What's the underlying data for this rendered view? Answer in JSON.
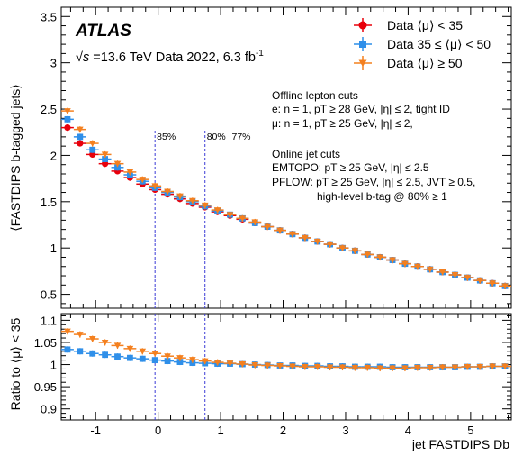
{
  "atlas": {
    "label": "ATLAS",
    "energy_pre": "√s",
    "energy_post": " =13.6 TeV Data 2022, 6.3 fb",
    "lumi_sup": "-1"
  },
  "legend": [
    {
      "label": "Data ⟨μ⟩ < 35",
      "color": "#e8000b",
      "marker": "circle"
    },
    {
      "label": "Data 35 ≤ ⟨μ⟩ < 50",
      "color": "#2f8fe9",
      "marker": "square"
    },
    {
      "label": "Data ⟨μ⟩ ≥ 50",
      "color": "#f4801f",
      "marker": "triangle"
    }
  ],
  "annotations": {
    "offline": {
      "title": "Offline lepton cuts",
      "e_cuts": "e: n = 1, pT ≥ 28 GeV, |η| ≤ 2, tight ID",
      "mu_cuts": "μ: n = 1, pT ≥ 25 GeV, |η| ≤ 2,"
    },
    "online": {
      "title": "Online jet cuts",
      "emtopo": "EMTOPO: pT ≥ 25 GeV, |η| ≤ 2.5",
      "pflow": "PFLOW: pT ≥ 25 GeV, |η| ≤ 2.5, JVT ≥ 0.5,",
      "btag": "high-level b-tag @ 80% ≥ 1"
    },
    "wp_lines": [
      {
        "x": -0.05,
        "label": "85%"
      },
      {
        "x": 0.75,
        "label": "80%"
      },
      {
        "x": 1.15,
        "label": "77%"
      }
    ]
  },
  "axes": {
    "xlabel": "jet FASTDIPS Db",
    "ylabel_top": "⟨FASTDIPS b-tagged jets⟩",
    "ylabel_ratio": "Ratio to ⟨μ⟩ < 35"
  },
  "chart_data": {
    "type": "scatter",
    "x": [
      -1.45,
      -1.25,
      -1.05,
      -0.85,
      -0.65,
      -0.45,
      -0.25,
      -0.05,
      0.15,
      0.35,
      0.55,
      0.75,
      0.95,
      1.15,
      1.35,
      1.55,
      1.75,
      1.95,
      2.15,
      2.35,
      2.55,
      2.75,
      2.95,
      3.15,
      3.35,
      3.55,
      3.75,
      3.95,
      4.15,
      4.35,
      4.55,
      4.75,
      4.95,
      5.15,
      5.35,
      5.55
    ],
    "series": [
      {
        "name": "Data ⟨μ⟩ < 35",
        "values": [
          2.3,
          2.13,
          2.01,
          1.91,
          1.83,
          1.76,
          1.69,
          1.63,
          1.58,
          1.53,
          1.48,
          1.44,
          1.39,
          1.35,
          1.31,
          1.27,
          1.23,
          1.19,
          1.15,
          1.11,
          1.07,
          1.04,
          1.0,
          0.97,
          0.93,
          0.9,
          0.87,
          0.83,
          0.8,
          0.77,
          0.74,
          0.71,
          0.68,
          0.65,
          0.62,
          0.59
        ]
      },
      {
        "name": "Data 35 ≤ ⟨μ⟩ < 50",
        "values": [
          2.39,
          2.2,
          2.06,
          1.96,
          1.87,
          1.79,
          1.72,
          1.65,
          1.6,
          1.55,
          1.5,
          1.45,
          1.4,
          1.36,
          1.32,
          1.27,
          1.23,
          1.19,
          1.15,
          1.11,
          1.07,
          1.04,
          1.0,
          0.97,
          0.93,
          0.9,
          0.87,
          0.83,
          0.8,
          0.77,
          0.74,
          0.71,
          0.68,
          0.65,
          0.62,
          0.59
        ]
      },
      {
        "name": "Data ⟨μ⟩ ≥ 50",
        "values": [
          2.48,
          2.28,
          2.13,
          2.01,
          1.91,
          1.82,
          1.74,
          1.67,
          1.61,
          1.56,
          1.51,
          1.46,
          1.41,
          1.36,
          1.32,
          1.28,
          1.23,
          1.19,
          1.15,
          1.11,
          1.07,
          1.04,
          1.0,
          0.97,
          0.93,
          0.9,
          0.87,
          0.83,
          0.8,
          0.77,
          0.74,
          0.71,
          0.68,
          0.65,
          0.62,
          0.59
        ]
      }
    ],
    "ratio": [
      {
        "name": "Data 35 ≤ ⟨μ⟩ < 50",
        "values": [
          1.034,
          1.03,
          1.025,
          1.022,
          1.018,
          1.015,
          1.013,
          1.01,
          1.008,
          1.006,
          1.004,
          1.003,
          1.002,
          1.002,
          1.001,
          1.0,
          0.999,
          0.998,
          0.998,
          0.997,
          0.997,
          0.996,
          0.996,
          0.995,
          0.995,
          0.995,
          0.994,
          0.994,
          0.994,
          0.994,
          0.994,
          0.994,
          0.995,
          0.995,
          0.996,
          0.996
        ]
      },
      {
        "name": "Data ⟨μ⟩ ≥ 50",
        "values": [
          1.075,
          1.068,
          1.058,
          1.05,
          1.043,
          1.036,
          1.03,
          1.025,
          1.019,
          1.015,
          1.011,
          1.008,
          1.005,
          1.003,
          1.001,
          0.999,
          0.998,
          0.997,
          0.996,
          0.995,
          0.995,
          0.994,
          0.994,
          0.993,
          0.993,
          0.992,
          0.992,
          0.992,
          0.993,
          0.993,
          0.994,
          0.994,
          0.995,
          0.995,
          0.996,
          0.996
        ]
      }
    ],
    "xlim": [
      -1.55,
      5.65
    ],
    "ylim": [
      0.35,
      3.6
    ],
    "ratio_ylim": [
      0.875,
      1.115
    ],
    "x_ticks": [
      -1,
      0,
      1,
      2,
      3,
      4,
      5
    ],
    "y_ticks": [
      0.5,
      1,
      1.5,
      2,
      2.5,
      3,
      3.5
    ],
    "ratio_ticks": [
      0.9,
      0.95,
      1,
      1.05,
      1.1
    ],
    "grid": false
  }
}
